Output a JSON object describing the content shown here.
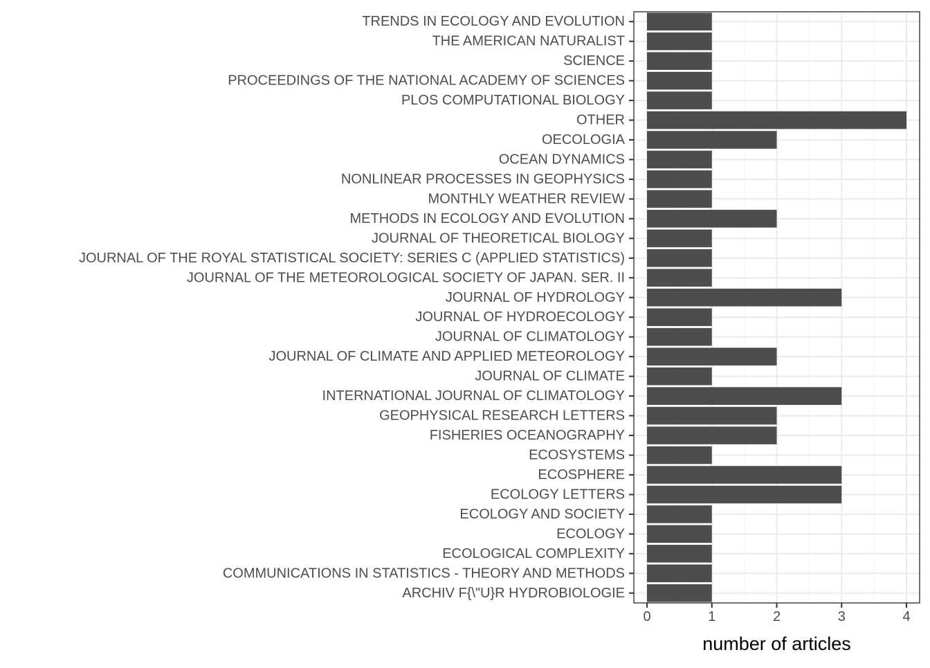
{
  "chart_data": {
    "type": "bar",
    "orientation": "horizontal",
    "title": "",
    "xlabel": "number of articles",
    "ylabel": "",
    "xlim": [
      0,
      4
    ],
    "x_ticks": [
      0,
      1,
      2,
      3,
      4
    ],
    "grid": true,
    "categories": [
      "TRENDS IN ECOLOGY AND EVOLUTION",
      "THE AMERICAN NATURALIST",
      "SCIENCE",
      "PROCEEDINGS OF THE NATIONAL ACADEMY OF SCIENCES",
      "PLOS COMPUTATIONAL BIOLOGY",
      "OTHER",
      "OECOLOGIA",
      "OCEAN DYNAMICS",
      "NONLINEAR PROCESSES IN GEOPHYSICS",
      "MONTHLY WEATHER REVIEW",
      "METHODS IN ECOLOGY AND EVOLUTION",
      "JOURNAL OF THEORETICAL BIOLOGY",
      "JOURNAL OF THE ROYAL STATISTICAL SOCIETY: SERIES C (APPLIED STATISTICS)",
      "JOURNAL OF THE METEOROLOGICAL SOCIETY OF JAPAN. SER. II",
      "JOURNAL OF HYDROLOGY",
      "JOURNAL OF HYDROECOLOGY",
      "JOURNAL OF CLIMATOLOGY",
      "JOURNAL OF CLIMATE AND APPLIED METEOROLOGY",
      "JOURNAL OF CLIMATE",
      "INTERNATIONAL JOURNAL OF CLIMATOLOGY",
      "GEOPHYSICAL RESEARCH LETTERS",
      "FISHERIES OCEANOGRAPHY",
      "ECOSYSTEMS",
      "ECOSPHERE",
      "ECOLOGY LETTERS",
      "ECOLOGY AND SOCIETY",
      "ECOLOGY",
      "ECOLOGICAL COMPLEXITY",
      "COMMUNICATIONS IN STATISTICS - THEORY AND METHODS",
      "ARCHIV F{\\\"U}R HYDROBIOLOGIE"
    ],
    "values": [
      1,
      1,
      1,
      1,
      1,
      4,
      2,
      1,
      1,
      1,
      2,
      1,
      1,
      1,
      3,
      1,
      1,
      2,
      1,
      3,
      2,
      2,
      1,
      3,
      3,
      1,
      1,
      1,
      1,
      1
    ],
    "colors": {
      "bar": "#4d4d4d",
      "panel_border": "#333333",
      "grid_major": "#ebebeb",
      "grid_minor": "#f2f2f2",
      "tick_label": "#4d4d4d",
      "axis_title": "#000000"
    }
  }
}
